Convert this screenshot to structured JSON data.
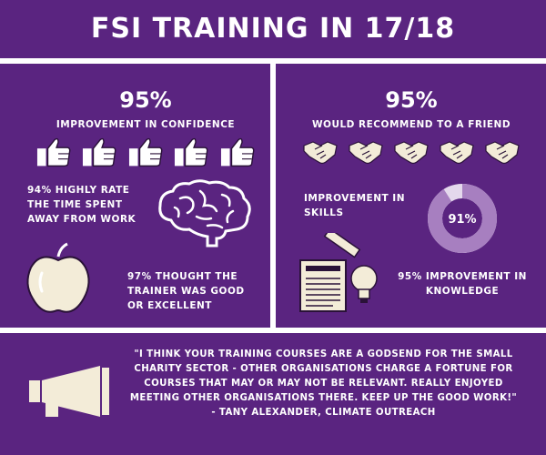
{
  "title": "FSI TRAINING IN 17/18",
  "left": {
    "confidence_pct": "95%",
    "confidence_label": "IMPROVEMENT IN CONFIDENCE",
    "rate_text": "94% HIGHLY RATE THE TIME SPENT AWAY FROM WORK",
    "trainer_text": "97% THOUGHT THE TRAINER WAS GOOD OR EXCELLENT",
    "thumbs_count": 5
  },
  "right": {
    "recommend_pct": "95%",
    "recommend_label": "WOULD RECOMMEND TO A FRIEND",
    "skills_label": "IMPROVEMENT IN SKILLS",
    "skills_value": "91%",
    "skills_fraction": 0.91,
    "knowledge_text": "95% IMPROVEMENT IN KNOWLEDGE",
    "handshake_count": 5
  },
  "testimonial": {
    "quote": "\"I think your training courses are a godsend for the small charity sector - other organisations charge a fortune for courses that may or may not be relevant. Really enjoyed meeting other organisations there. Keep up the good work!\"",
    "author": "- Tany Alexander, Climate Outreach"
  },
  "colors": {
    "background": "#5a2480",
    "cream": "#f3ecd8",
    "donut_fill": "#a77fc0",
    "donut_track": "#e4d8ec"
  }
}
